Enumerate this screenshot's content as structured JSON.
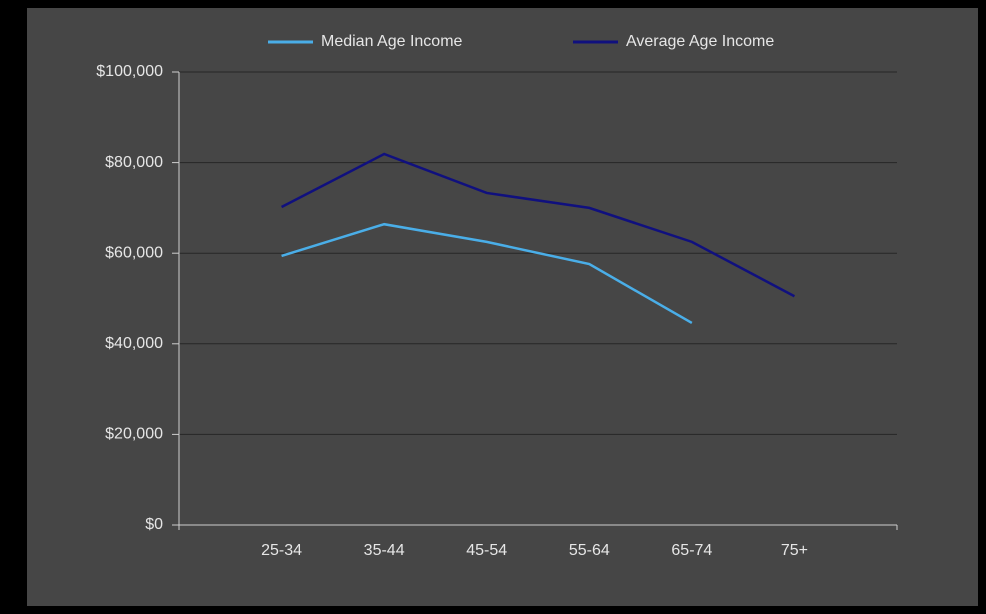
{
  "chart_data": {
    "type": "line",
    "categories": [
      null,
      "25-34",
      "35-44",
      "45-54",
      "55-64",
      "65-74",
      "75+",
      null
    ],
    "series": [
      {
        "name": "Median Age Income",
        "color": "#4aaee8",
        "values": [
          null,
          59400,
          66400,
          62500,
          57600,
          44600,
          null,
          null
        ]
      },
      {
        "name": "Average Age Income",
        "color": "#10107e",
        "values": [
          null,
          70200,
          81900,
          73300,
          70000,
          62500,
          50500,
          null
        ]
      }
    ],
    "ylim": [
      0,
      100000
    ],
    "yticks": [
      {
        "value": 0,
        "label": "$0"
      },
      {
        "value": 20000,
        "label": "$20,000"
      },
      {
        "value": 40000,
        "label": "$40,000"
      },
      {
        "value": 60000,
        "label": "$60,000"
      },
      {
        "value": 80000,
        "label": "$80,000"
      },
      {
        "value": 100000,
        "label": "$100,000"
      }
    ],
    "grid": true,
    "legend": "top"
  }
}
